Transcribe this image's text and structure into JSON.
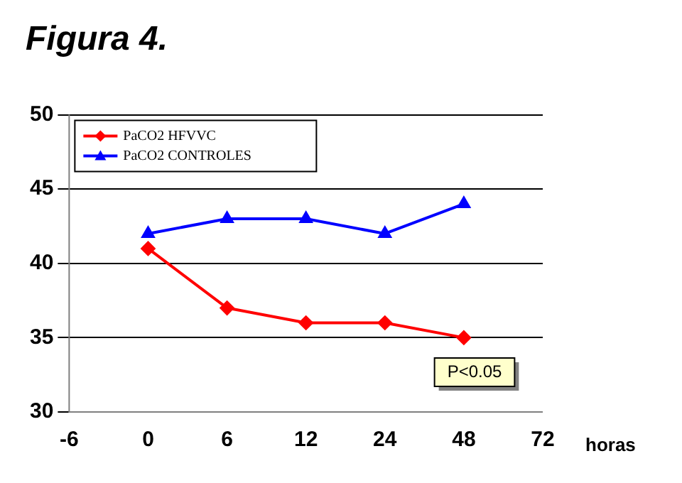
{
  "chart_data": {
    "type": "line",
    "title": "Figura 4.",
    "xlabel": "horas",
    "categories": [
      "-6",
      "0",
      "6",
      "12",
      "24",
      "48",
      "72"
    ],
    "series": [
      {
        "name": "PaCO2 HFVVC",
        "color": "#ff0000",
        "marker": "diamond",
        "values": [
          null,
          41,
          37,
          36,
          36,
          35,
          null
        ]
      },
      {
        "name": "PaCO2 CONTROLES",
        "color": "#0000ff",
        "marker": "triangle",
        "values": [
          null,
          42,
          43,
          43,
          42,
          44,
          null
        ]
      }
    ],
    "ylim": [
      30,
      50
    ],
    "yticks": [
      30,
      35,
      40,
      45,
      50
    ],
    "grid": "y",
    "legend": "top left",
    "annotations": [
      "P<0.05"
    ]
  }
}
